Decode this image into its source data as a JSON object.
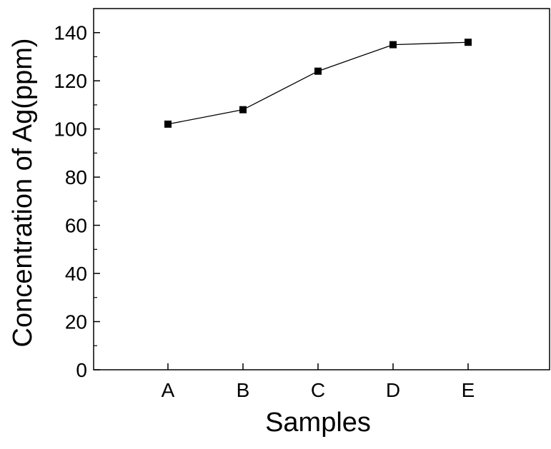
{
  "chart_data": {
    "type": "line",
    "title": "",
    "xlabel": "Samples",
    "ylabel": "Concentration of Ag(ppm)",
    "categories": [
      "A",
      "B",
      "C",
      "D",
      "E"
    ],
    "series": [
      {
        "values": [
          102,
          108,
          124,
          135,
          136
        ]
      }
    ],
    "ylim": [
      0,
      150
    ],
    "yticks": [
      0,
      20,
      40,
      60,
      80,
      100,
      120,
      140
    ],
    "grid": false,
    "legend": "none",
    "marker": "square",
    "line_color": "#000000",
    "marker_color": "#000000"
  }
}
